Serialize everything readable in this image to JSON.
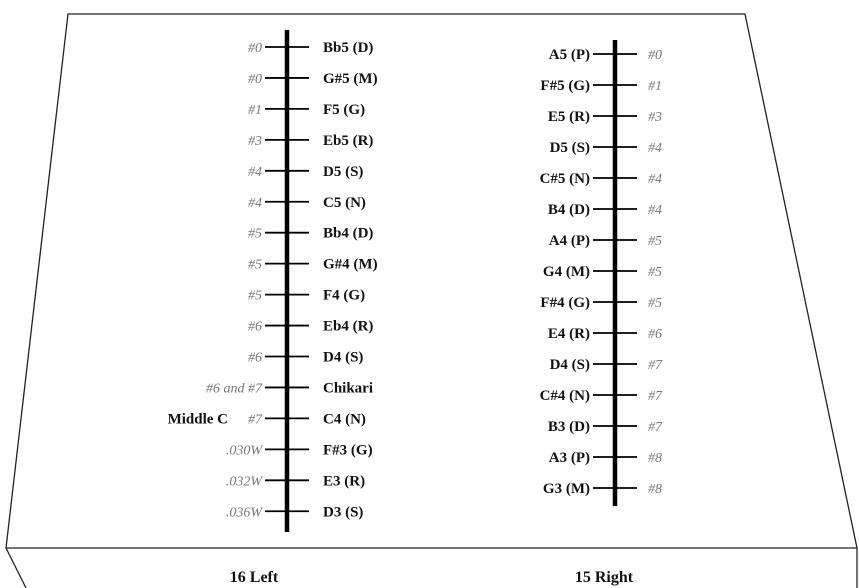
{
  "left_bridge": {
    "label": "16 Left",
    "strings": [
      {
        "gauge": "#0",
        "note": "Bb5 (D)"
      },
      {
        "gauge": "#0",
        "note": "G#5 (M)"
      },
      {
        "gauge": "#1",
        "note": "F5 (G)"
      },
      {
        "gauge": "#3",
        "note": "Eb5 (R)"
      },
      {
        "gauge": "#4",
        "note": "D5 (S)"
      },
      {
        "gauge": "#4",
        "note": "C5 (N)"
      },
      {
        "gauge": "#5",
        "note": "Bb4 (D)"
      },
      {
        "gauge": "#5",
        "note": "G#4 (M)"
      },
      {
        "gauge": "#5",
        "note": "F4 (G)"
      },
      {
        "gauge": "#6",
        "note": "Eb4 (R)"
      },
      {
        "gauge": "#6",
        "note": "D4 (S)"
      },
      {
        "gauge": "#6 and #7",
        "note": "Chikari"
      },
      {
        "gauge": "#7",
        "note": "C4 (N)",
        "marker": "Middle C"
      },
      {
        "gauge": ".030W",
        "note": "F#3 (G)"
      },
      {
        "gauge": ".032W",
        "note": "E3 (R)"
      },
      {
        "gauge": ".036W",
        "note": "D3 (S)"
      }
    ]
  },
  "right_bridge": {
    "label": "15 Right",
    "strings": [
      {
        "note": "A5 (P)",
        "gauge": "#0"
      },
      {
        "note": "F#5 (G)",
        "gauge": "#1"
      },
      {
        "note": "E5 (R)",
        "gauge": "#3"
      },
      {
        "note": "D5 (S)",
        "gauge": "#4"
      },
      {
        "note": "C#5 (N)",
        "gauge": "#4"
      },
      {
        "note": "B4 (D)",
        "gauge": "#4"
      },
      {
        "note": "A4 (P)",
        "gauge": "#5"
      },
      {
        "note": "G4 (M)",
        "gauge": "#5"
      },
      {
        "note": "F#4 (G)",
        "gauge": "#5"
      },
      {
        "note": "E4 (R)",
        "gauge": "#6"
      },
      {
        "note": "D4 (S)",
        "gauge": "#7"
      },
      {
        "note": "C#4 (N)",
        "gauge": "#7"
      },
      {
        "note": "B3 (D)",
        "gauge": "#7"
      },
      {
        "note": "A3 (P)",
        "gauge": "#8"
      },
      {
        "note": "G3 (M)",
        "gauge": "#8"
      }
    ]
  }
}
